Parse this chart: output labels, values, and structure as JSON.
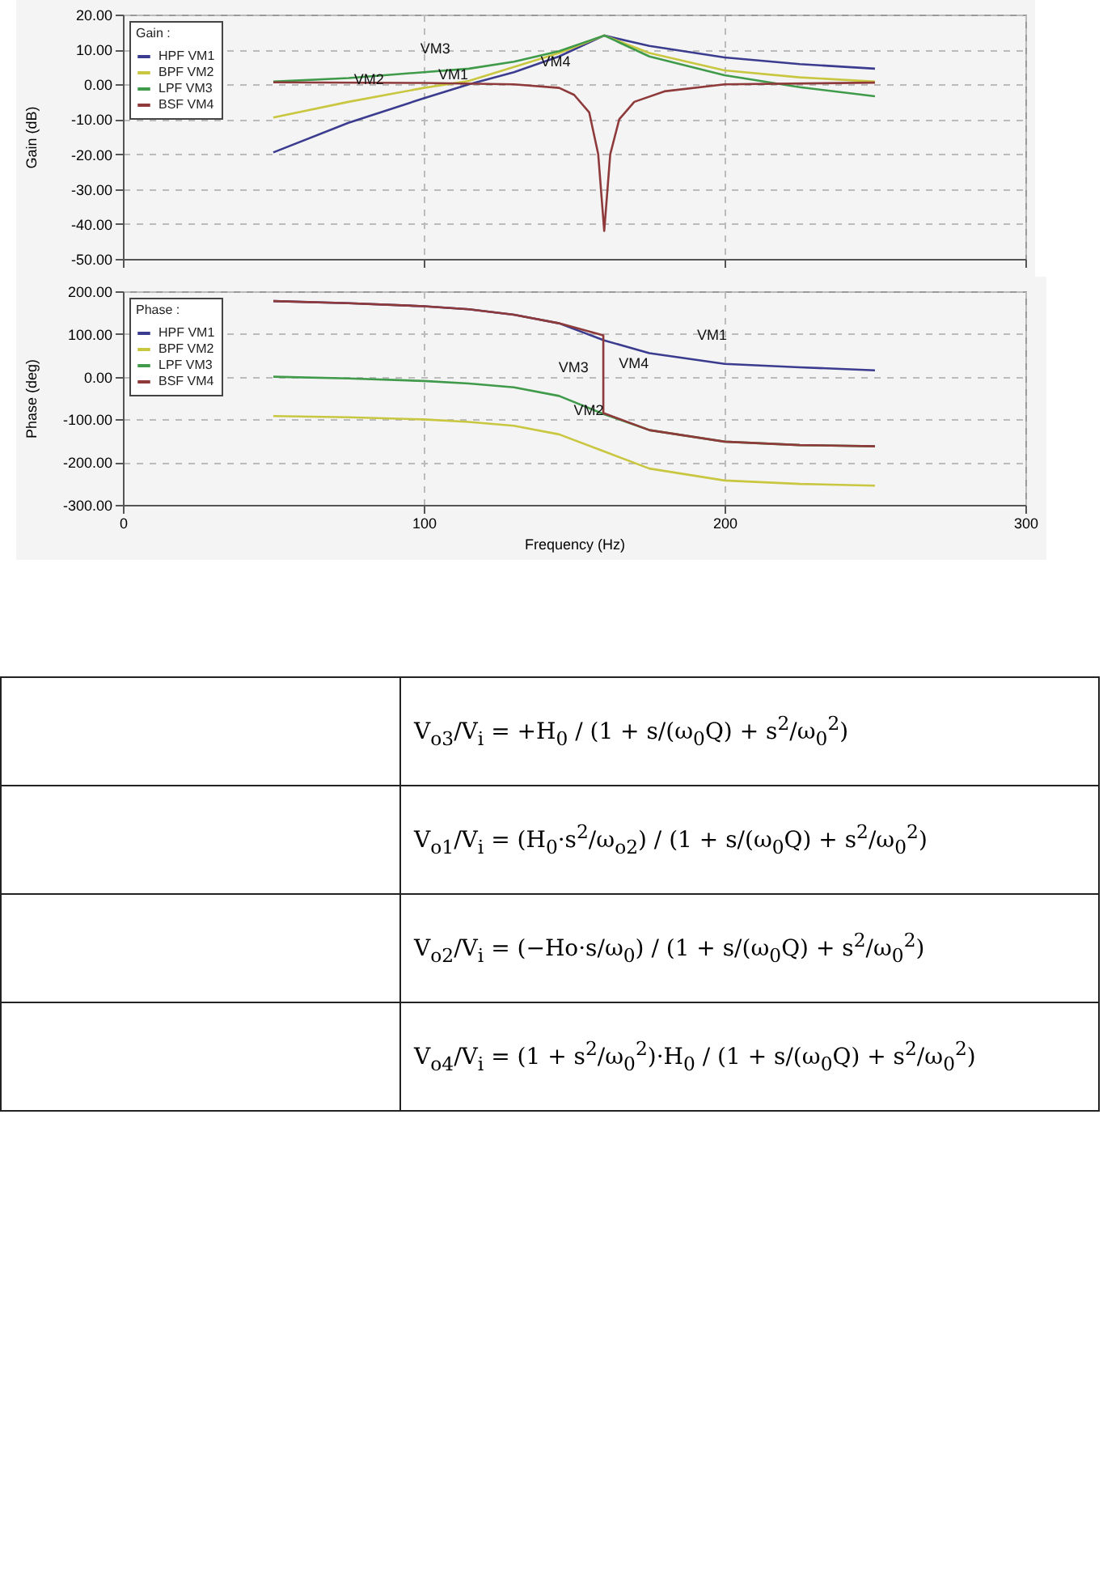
{
  "chart_data": [
    {
      "type": "line",
      "ylabel": "Gain (dB)",
      "legend_title": "Gain :",
      "legend": "left",
      "grid": true,
      "tick_labels": "y",
      "line_style": "solid",
      "marker": "none",
      "x": [
        50,
        75,
        100,
        115,
        130,
        145,
        160,
        175,
        200,
        225,
        250
      ],
      "xlim": [
        0,
        300
      ],
      "xticks": [
        0,
        100,
        200,
        300
      ],
      "ylim": [
        -50,
        20
      ],
      "yticks": [
        {
          "value": 20,
          "label": "20.00"
        },
        {
          "value": 10,
          "label": "10.00"
        },
        {
          "value": 0,
          "label": "0.00"
        },
        {
          "value": -10,
          "label": "-10.00"
        },
        {
          "value": -20,
          "label": "-20.00"
        },
        {
          "value": -30,
          "label": "-30.00"
        },
        {
          "value": -40,
          "label": "-40.00"
        },
        {
          "value": -50,
          "label": "-50.00"
        }
      ],
      "series": [
        {
          "name": "HPF VM1",
          "color": "#3b3b8f",
          "values": [
            -19.5,
            -11,
            -4,
            0,
            3.5,
            8,
            14,
            11,
            7.7,
            5.8,
            4.5
          ]
        },
        {
          "name": "BPF VM2",
          "color": "#c9c640",
          "values": [
            -9.5,
            -5,
            -1,
            1,
            5,
            9,
            14,
            9,
            4,
            2,
            0.8
          ]
        },
        {
          "name": "LPF VM3",
          "color": "#3f9a4a",
          "values": [
            0.8,
            1.8,
            3.5,
            4.5,
            6.5,
            9.5,
            14,
            8,
            2.6,
            -0.8,
            -3.4
          ]
        },
        {
          "name": "BSF VM4",
          "color": "#8f3a3a",
          "x": [
            50,
            100,
            130,
            145,
            150,
            155,
            158,
            160,
            162,
            165,
            170,
            180,
            200,
            250
          ],
          "values": [
            0.6,
            0.4,
            0,
            -1,
            -3,
            -8,
            -20,
            -42,
            -20,
            -10,
            -5,
            -2,
            0,
            0.5
          ]
        }
      ],
      "annotations": [
        {
          "text": "VM1",
          "x": 100,
          "y": -4
        },
        {
          "text": "VM2",
          "x": 72,
          "y": -5.5
        },
        {
          "text": "VM3",
          "x": 94,
          "y": 3.3
        },
        {
          "text": "VM4",
          "x": 134,
          "y": -0.5
        }
      ]
    },
    {
      "type": "line",
      "xlabel": "Frequency (Hz)",
      "ylabel": "Phase (deg)",
      "legend_title": "Phase :",
      "legend": "left",
      "grid": true,
      "line_style": "solid",
      "marker": "none",
      "x": [
        50,
        75,
        100,
        115,
        130,
        145,
        160,
        175,
        200,
        225,
        250
      ],
      "xlim": [
        0,
        300
      ],
      "xticks": [
        0,
        100,
        200,
        300
      ],
      "ylim": [
        -300,
        200
      ],
      "yticks": [
        {
          "value": 200,
          "label": "200.00"
        },
        {
          "value": 100,
          "label": "100.00"
        },
        {
          "value": 0,
          "label": "0.00"
        },
        {
          "value": -100,
          "label": "-100.00"
        },
        {
          "value": -200,
          "label": "-200.00"
        },
        {
          "value": -300,
          "label": "-300.00"
        }
      ],
      "series": [
        {
          "name": "HPF VM1",
          "color": "#3b3b8f",
          "values": [
            177,
            172,
            165,
            158,
            145,
            125,
            85,
            55,
            30,
            22,
            15
          ]
        },
        {
          "name": "BPF VM2",
          "color": "#c9c640",
          "values": [
            -92,
            -95,
            -100,
            -106,
            -115,
            -135,
            -175,
            -215,
            -243,
            -251,
            -255
          ]
        },
        {
          "name": "LPF VM3",
          "color": "#3f9a4a",
          "values": [
            0,
            -4,
            -10,
            -16,
            -25,
            -45,
            -88,
            -125,
            -152,
            -160,
            -163
          ]
        },
        {
          "name": "BSF VM4",
          "color": "#8f3a3a",
          "x": [
            50,
            75,
            100,
            115,
            130,
            145,
            159.7,
            159.7,
            175,
            200,
            225,
            250
          ],
          "values": [
            177,
            172,
            165,
            158,
            145,
            125,
            97,
            -85,
            -125,
            -152,
            -160,
            -163
          ]
        }
      ],
      "annotations": [
        {
          "text": "VM1",
          "x": 186,
          "y": 40
        },
        {
          "text": "VM2",
          "x": 145,
          "y": -135
        },
        {
          "text": "VM3",
          "x": 140,
          "y": -35
        },
        {
          "text": "VM4",
          "x": 160,
          "y": -25
        }
      ]
    },
    {
      "type": "other",
      "annotations": [
        "V$_{o3}$/V$_{i}$ = +H$_{0}$ / (1 + s/(ω$_{0}$Q) + s$^{2}$/ω$_{0}$$^{2}$)",
        "V$_{o1}$/V$_{i}$ = (H$_{0}$·s$^{2}$/ω$_{o2}$) / (1 + s/(ω$_{0}$Q) + s$^{2}$/ω$_{0}$$^{2}$)",
        "V$_{o2}$/V$_{i}$ = (−Ho·s/ω$_{0}$) / (1 + s/(ω$_{0}$Q) + s$^{2}$/ω$_{0}$$^{2}$)",
        "V$_{o4}$/V$_{i}$ = (1 + s$^{2}$/ω$_{0}$$^{2}$)·H$_{0}$ / (1 + s/(ω$_{0}$Q) + s$^{2}$/ω$_{0}$$^{2}$)"
      ]
    }
  ]
}
